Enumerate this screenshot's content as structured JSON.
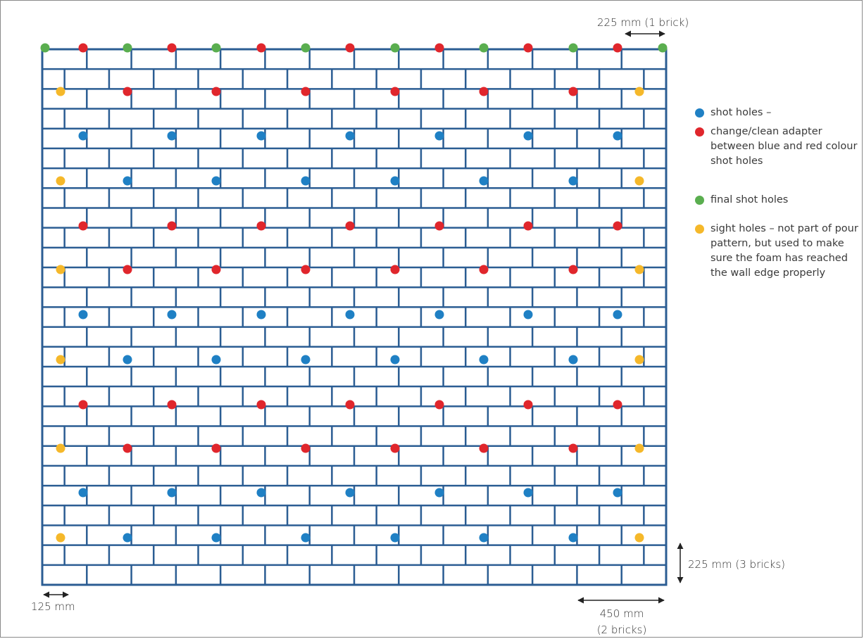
{
  "diagram": {
    "colors": {
      "brick_line": "#2b5d93",
      "blue": "#1f80c4",
      "red": "#e0262c",
      "green": "#5aae4f",
      "yellow": "#f5b82a",
      "arrow": "#222222"
    },
    "wall": {
      "courses": 27,
      "bricks_per_course": 14
    },
    "dimensions": {
      "top": "225 mm (1 brick)",
      "right": "225 mm (3 bricks)",
      "bottom_left": "125 mm",
      "bottom_right_line1": "450 mm",
      "bottom_right_line2": "(2 bricks)"
    },
    "legend": [
      {
        "color": "blue",
        "text": "shot holes –"
      },
      {
        "color": "red",
        "text": "change/clean adapter between blue and red colour shot holes"
      },
      {
        "color": "green",
        "text": "final shot holes"
      },
      {
        "color": "yellow",
        "text": "sight holes – not part of pour pattern, but used to make sure the foam has reached the wall edge properly"
      }
    ]
  }
}
